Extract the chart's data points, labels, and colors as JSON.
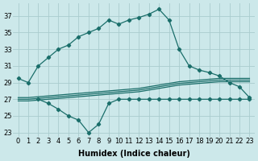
{
  "bg_color": "#cce8ea",
  "grid_color": "#aaccce",
  "line_color": "#1a6e6a",
  "line_width": 0.9,
  "marker": "D",
  "marker_size": 2.2,
  "x_main": [
    0,
    1,
    2,
    3,
    4,
    5,
    6,
    7,
    8,
    9,
    10,
    11,
    12,
    13,
    14,
    15,
    16,
    17,
    18,
    19,
    20,
    21,
    22,
    23
  ],
  "y_main": [
    29.5,
    29.0,
    31.0,
    32.0,
    33.0,
    33.5,
    34.5,
    35.0,
    35.5,
    36.5,
    36.0,
    36.5,
    36.8,
    37.2,
    37.8,
    36.5,
    33.0,
    31.0,
    30.5,
    30.2,
    29.8,
    29.0,
    28.5,
    27.2
  ],
  "x_lower": [
    2,
    3,
    4,
    5,
    6,
    7,
    8,
    9,
    10,
    11,
    12,
    13,
    14,
    15,
    16,
    17,
    18,
    19,
    20,
    21,
    22,
    23
  ],
  "y_lower": [
    27.0,
    26.5,
    25.8,
    25.0,
    24.5,
    23.0,
    24.0,
    26.5,
    27.0,
    27.0,
    27.0,
    27.0,
    27.0,
    27.0,
    27.0,
    27.0,
    27.0,
    27.0,
    27.0,
    27.0,
    27.0,
    27.0
  ],
  "x_ref1": [
    0,
    1,
    2,
    3,
    4,
    5,
    6,
    7,
    8,
    9,
    10,
    11,
    12,
    13,
    14,
    15,
    16,
    17,
    18,
    19,
    20,
    21,
    22,
    23
  ],
  "y_ref1": [
    27.2,
    27.2,
    27.3,
    27.4,
    27.5,
    27.6,
    27.7,
    27.8,
    27.9,
    28.0,
    28.1,
    28.2,
    28.3,
    28.5,
    28.7,
    28.9,
    29.1,
    29.2,
    29.3,
    29.4,
    29.5,
    29.5,
    29.5,
    29.5
  ],
  "x_ref2": [
    0,
    1,
    2,
    3,
    4,
    5,
    6,
    7,
    8,
    9,
    10,
    11,
    12,
    13,
    14,
    15,
    16,
    17,
    18,
    19,
    20,
    21,
    22,
    23
  ],
  "y_ref2": [
    27.0,
    27.0,
    27.1,
    27.2,
    27.3,
    27.4,
    27.5,
    27.6,
    27.7,
    27.8,
    27.9,
    28.0,
    28.1,
    28.3,
    28.5,
    28.7,
    28.9,
    29.0,
    29.1,
    29.2,
    29.3,
    29.3,
    29.3,
    29.3
  ],
  "x_ref3": [
    0,
    1,
    2,
    3,
    4,
    5,
    6,
    7,
    8,
    9,
    10,
    11,
    12,
    13,
    14,
    15,
    16,
    17,
    18,
    19,
    20,
    21,
    22,
    23
  ],
  "y_ref3": [
    26.8,
    26.8,
    26.9,
    27.0,
    27.1,
    27.2,
    27.3,
    27.4,
    27.5,
    27.6,
    27.7,
    27.8,
    27.9,
    28.1,
    28.3,
    28.5,
    28.7,
    28.8,
    28.9,
    29.0,
    29.1,
    29.1,
    29.1,
    29.1
  ],
  "xlabel": "Humidex (Indice chaleur)",
  "xlabel_fontsize": 7,
  "tick_fontsize": 6,
  "yticks": [
    23,
    25,
    27,
    29,
    31,
    33,
    35,
    37
  ],
  "xticks": [
    0,
    1,
    2,
    3,
    4,
    5,
    6,
    7,
    8,
    9,
    10,
    11,
    12,
    13,
    14,
    15,
    16,
    17,
    18,
    19,
    20,
    21,
    22,
    23
  ],
  "xlim": [
    -0.5,
    23.5
  ],
  "ylim": [
    22.5,
    38.5
  ]
}
